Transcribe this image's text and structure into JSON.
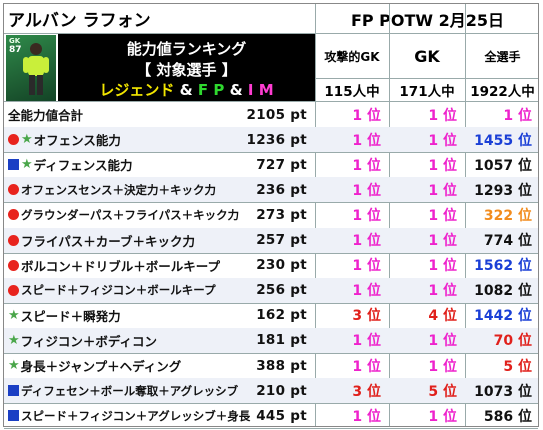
{
  "header": {
    "player_name": "アルバン ラフォン",
    "event": "FP POTW 2月25日",
    "card": {
      "position": "GK",
      "rating": "87"
    },
    "ranking_title": "能力値ランキング",
    "target_label": "【 対象選手 】",
    "target_groups": [
      {
        "text": "レジェンド",
        "color": "#f2e600"
      },
      {
        "text": " & ",
        "color": "#ffffff"
      },
      {
        "text": "F P",
        "color": "#2fd82f"
      },
      {
        "text": " & ",
        "color": "#ffffff"
      },
      {
        "text": "I M",
        "color": "#ff3dd2"
      }
    ],
    "columns": [
      {
        "title": "攻撃的GK",
        "count": "115人中"
      },
      {
        "title": "GK",
        "count": "171人中"
      },
      {
        "title": "全選手",
        "count": "1922人中"
      }
    ]
  },
  "colors": {
    "pink": "#ee22cc",
    "red": "#e0201b",
    "blue": "#1a3fd6",
    "orange": "#f28c1e",
    "black": "#111111"
  },
  "rows": [
    {
      "marks": [],
      "label": "全能力値合計",
      "value": "2105 pt",
      "ranks": [
        {
          "t": "1 位",
          "c": "pink"
        },
        {
          "t": "1 位",
          "c": "pink"
        },
        {
          "t": "1 位",
          "c": "pink"
        }
      ]
    },
    {
      "marks": [
        "dot",
        "star"
      ],
      "label": "オフェンス能力",
      "value": "1236 pt",
      "ranks": [
        {
          "t": "1 位",
          "c": "pink"
        },
        {
          "t": "1 位",
          "c": "pink"
        },
        {
          "t": "1455 位",
          "c": "blue"
        }
      ]
    },
    {
      "marks": [
        "sq",
        "star"
      ],
      "label": "ディフェンス能力",
      "value": "727 pt",
      "ranks": [
        {
          "t": "1 位",
          "c": "pink"
        },
        {
          "t": "1 位",
          "c": "pink"
        },
        {
          "t": "1057 位",
          "c": "black"
        }
      ]
    },
    {
      "marks": [
        "dot"
      ],
      "label": "オフェンスセンス＋決定力＋キック力",
      "value": "236 pt",
      "ranks": [
        {
          "t": "1 位",
          "c": "pink"
        },
        {
          "t": "1 位",
          "c": "pink"
        },
        {
          "t": "1293 位",
          "c": "black"
        }
      ]
    },
    {
      "marks": [
        "dot"
      ],
      "label": "グラウンダーパス＋フライパス＋キック力",
      "value": "273 pt",
      "ranks": [
        {
          "t": "1 位",
          "c": "pink"
        },
        {
          "t": "1 位",
          "c": "pink"
        },
        {
          "t": "322 位",
          "c": "orange"
        }
      ]
    },
    {
      "marks": [
        "dot"
      ],
      "label": "フライパス＋カーブ＋キック力",
      "value": "257 pt",
      "ranks": [
        {
          "t": "1 位",
          "c": "pink"
        },
        {
          "t": "1 位",
          "c": "pink"
        },
        {
          "t": "774 位",
          "c": "black"
        }
      ]
    },
    {
      "marks": [
        "dot"
      ],
      "label": "ボルコン＋ドリブル＋ボールキープ",
      "value": "230 pt",
      "ranks": [
        {
          "t": "1 位",
          "c": "pink"
        },
        {
          "t": "1 位",
          "c": "pink"
        },
        {
          "t": "1562 位",
          "c": "blue"
        }
      ]
    },
    {
      "marks": [
        "dot"
      ],
      "label": "スピード＋フィジコン＋ボールキープ",
      "value": "256 pt",
      "ranks": [
        {
          "t": "1 位",
          "c": "pink"
        },
        {
          "t": "1 位",
          "c": "pink"
        },
        {
          "t": "1082 位",
          "c": "black"
        }
      ]
    },
    {
      "marks": [
        "star"
      ],
      "label": "スピード＋瞬発力",
      "value": "162 pt",
      "ranks": [
        {
          "t": "3 位",
          "c": "red"
        },
        {
          "t": "4 位",
          "c": "red"
        },
        {
          "t": "1442 位",
          "c": "blue"
        }
      ]
    },
    {
      "marks": [
        "star"
      ],
      "label": "フィジコン＋ボディコン",
      "value": "181 pt",
      "ranks": [
        {
          "t": "1 位",
          "c": "pink"
        },
        {
          "t": "1 位",
          "c": "pink"
        },
        {
          "t": "70 位",
          "c": "red"
        }
      ]
    },
    {
      "marks": [
        "star"
      ],
      "label": "身長＋ジャンプ＋ヘディング",
      "value": "388 pt",
      "ranks": [
        {
          "t": "1 位",
          "c": "pink"
        },
        {
          "t": "1 位",
          "c": "pink"
        },
        {
          "t": "5 位",
          "c": "red"
        }
      ]
    },
    {
      "marks": [
        "sq"
      ],
      "label": "ディフェセン＋ボール奪取＋アグレッシブ",
      "value": "210 pt",
      "ranks": [
        {
          "t": "3 位",
          "c": "red"
        },
        {
          "t": "5 位",
          "c": "red"
        },
        {
          "t": "1073 位",
          "c": "black"
        }
      ]
    },
    {
      "marks": [
        "sq"
      ],
      "label": "スピード＋フィジコン＋アグレッシブ＋身長",
      "value": "445 pt",
      "ranks": [
        {
          "t": "1 位",
          "c": "pink"
        },
        {
          "t": "1 位",
          "c": "pink"
        },
        {
          "t": "586 位",
          "c": "black"
        }
      ]
    }
  ]
}
